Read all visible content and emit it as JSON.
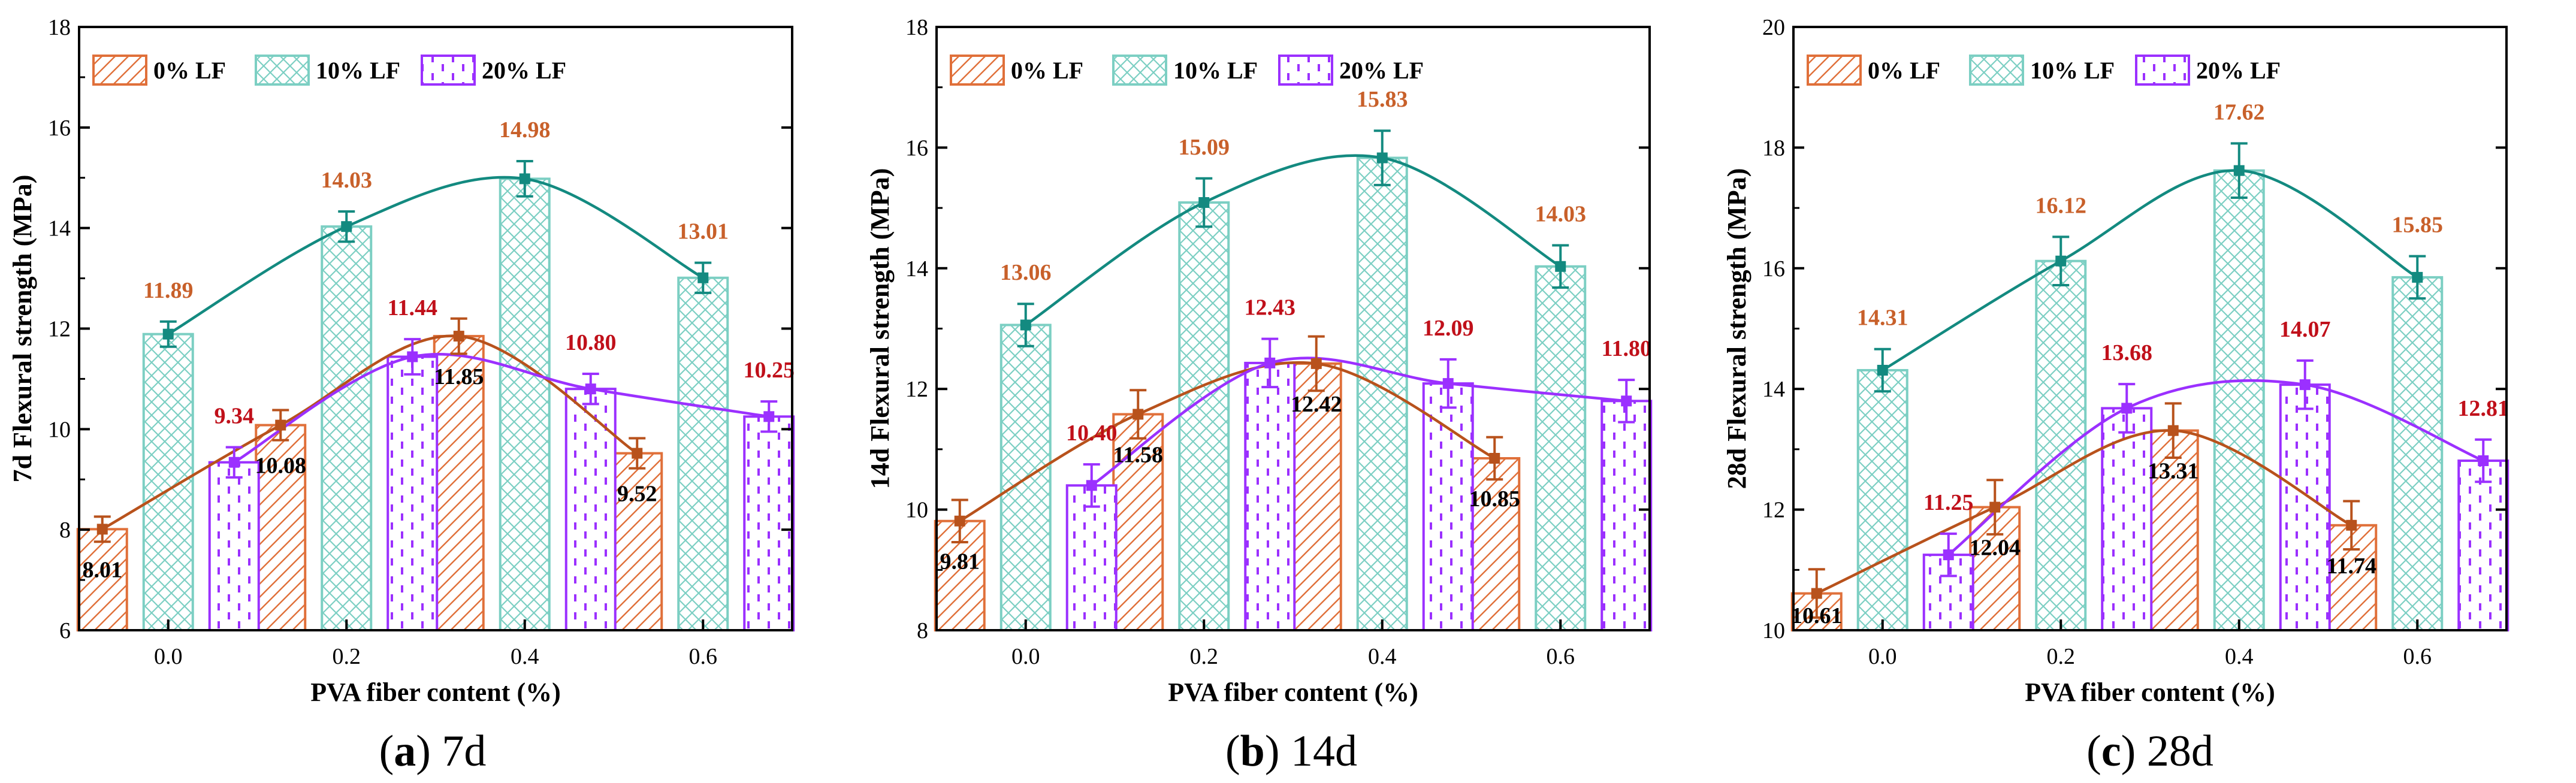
{
  "colors": {
    "lf0": "#E0703A",
    "lf10": "#7CCFC3",
    "lf20": "#9B30FF",
    "curve0": "#B8521C",
    "curve10": "#138A80",
    "curve20": "#9B30FF",
    "label_lf10": "#C8602A",
    "label_lf20": "#C0101A",
    "label_lf0": "#000000",
    "axis": "#000000"
  },
  "chart_data": [
    {
      "type": "bar",
      "caption_letter": "a",
      "caption_rest": " 7d",
      "xlabel": "PVA fiber content (%)",
      "ylabel": "7d Flexural strength (MPa)",
      "ylim": [
        6,
        18
      ],
      "yticks": [
        "6",
        "8",
        "10",
        "12",
        "14",
        "16",
        "18"
      ],
      "categories": [
        "0.0",
        "0.2",
        "0.4",
        "0.6"
      ],
      "legend": [
        "0% LF",
        "10% LF",
        "20% LF"
      ],
      "series": [
        {
          "name": "0% LF",
          "values": [
            8.01,
            10.08,
            11.85,
            9.52
          ],
          "labels": [
            "8.01",
            "10.08",
            "11.85",
            "9.52"
          ],
          "errors": [
            0.25,
            0.3,
            0.35,
            0.3
          ]
        },
        {
          "name": "10% LF",
          "values": [
            11.89,
            14.03,
            14.98,
            13.01
          ],
          "labels": [
            "11.89",
            "14.03",
            "14.98",
            "13.01"
          ],
          "errors": [
            0.25,
            0.3,
            0.35,
            0.3
          ]
        },
        {
          "name": "20% LF",
          "values": [
            9.34,
            11.44,
            10.8,
            10.25
          ],
          "labels": [
            "9.34",
            "11.44",
            "10.80",
            "10.25"
          ],
          "errors": [
            0.3,
            0.35,
            0.3,
            0.3
          ]
        }
      ]
    },
    {
      "type": "bar",
      "caption_letter": "b",
      "caption_rest": " 14d",
      "xlabel": "PVA fiber content (%)",
      "ylabel": "14d Flexural strength (MPa)",
      "ylim": [
        8,
        18
      ],
      "yticks": [
        "8",
        "10",
        "12",
        "14",
        "16",
        "18"
      ],
      "categories": [
        "0.0",
        "0.2",
        "0.4",
        "0.6"
      ],
      "legend": [
        "0% LF",
        "10% LF",
        "20% LF"
      ],
      "series": [
        {
          "name": "0% LF",
          "values": [
            9.81,
            11.58,
            12.42,
            10.85
          ],
          "labels": [
            "9.81",
            "11.58",
            "12.42",
            "10.85"
          ],
          "errors": [
            0.35,
            0.4,
            0.45,
            0.35
          ]
        },
        {
          "name": "10% LF",
          "values": [
            13.06,
            15.09,
            15.83,
            14.03
          ],
          "labels": [
            "13.06",
            "15.09",
            "15.83",
            "14.03"
          ],
          "errors": [
            0.35,
            0.4,
            0.45,
            0.35
          ]
        },
        {
          "name": "20% LF",
          "values": [
            10.4,
            12.43,
            12.09,
            11.8
          ],
          "labels": [
            "10.40",
            "12.43",
            "12.09",
            "11.80"
          ],
          "errors": [
            0.35,
            0.4,
            0.4,
            0.35
          ]
        }
      ]
    },
    {
      "type": "bar",
      "caption_letter": "c",
      "caption_rest": " 28d",
      "xlabel": "PVA fiber content (%)",
      "ylabel": "28d Flexural strength (MPa)",
      "ylim": [
        10,
        20
      ],
      "yticks": [
        "10",
        "12",
        "14",
        "16",
        "18",
        "20"
      ],
      "categories": [
        "0.0",
        "0.2",
        "0.4",
        "0.6"
      ],
      "legend": [
        "0% LF",
        "10% LF",
        "20% LF"
      ],
      "series": [
        {
          "name": "0% LF",
          "values": [
            10.61,
            12.04,
            13.31,
            11.74
          ],
          "labels": [
            "10.61",
            "12.04",
            "13.31",
            "11.74"
          ],
          "errors": [
            0.4,
            0.45,
            0.45,
            0.4
          ]
        },
        {
          "name": "10% LF",
          "values": [
            14.31,
            16.12,
            17.62,
            15.85
          ],
          "labels": [
            "14.31",
            "16.12",
            "17.62",
            "15.85"
          ],
          "errors": [
            0.35,
            0.4,
            0.45,
            0.35
          ]
        },
        {
          "name": "20% LF",
          "values": [
            11.25,
            13.68,
            14.07,
            12.81
          ],
          "labels": [
            "11.25",
            "13.68",
            "14.07",
            "12.81"
          ],
          "errors": [
            0.35,
            0.4,
            0.4,
            0.35
          ]
        }
      ]
    }
  ]
}
